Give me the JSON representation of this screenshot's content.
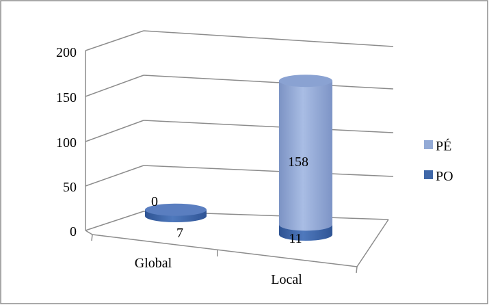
{
  "chart_data": {
    "type": "bar",
    "style": "3d-stacked-cylinder",
    "categories": [
      "Global",
      "Local"
    ],
    "series": [
      {
        "name": "PO",
        "values": [
          7,
          11
        ],
        "color": "#3f67a8"
      },
      {
        "name": "PÉ",
        "values": [
          0,
          158
        ],
        "color": "#93aad6"
      }
    ],
    "y_ticks": [
      "0",
      "50",
      "100",
      "150",
      "200"
    ],
    "ylim": [
      0,
      200
    ],
    "grid": true,
    "legend_position": "right",
    "data_labels": {
      "global_pe": "0",
      "global_po": "7",
      "local_pe": "158",
      "local_po": "11"
    },
    "colors": {
      "frame": "#8c8c8c",
      "grid": "#8c8c8c",
      "background": "#ffffff"
    }
  }
}
